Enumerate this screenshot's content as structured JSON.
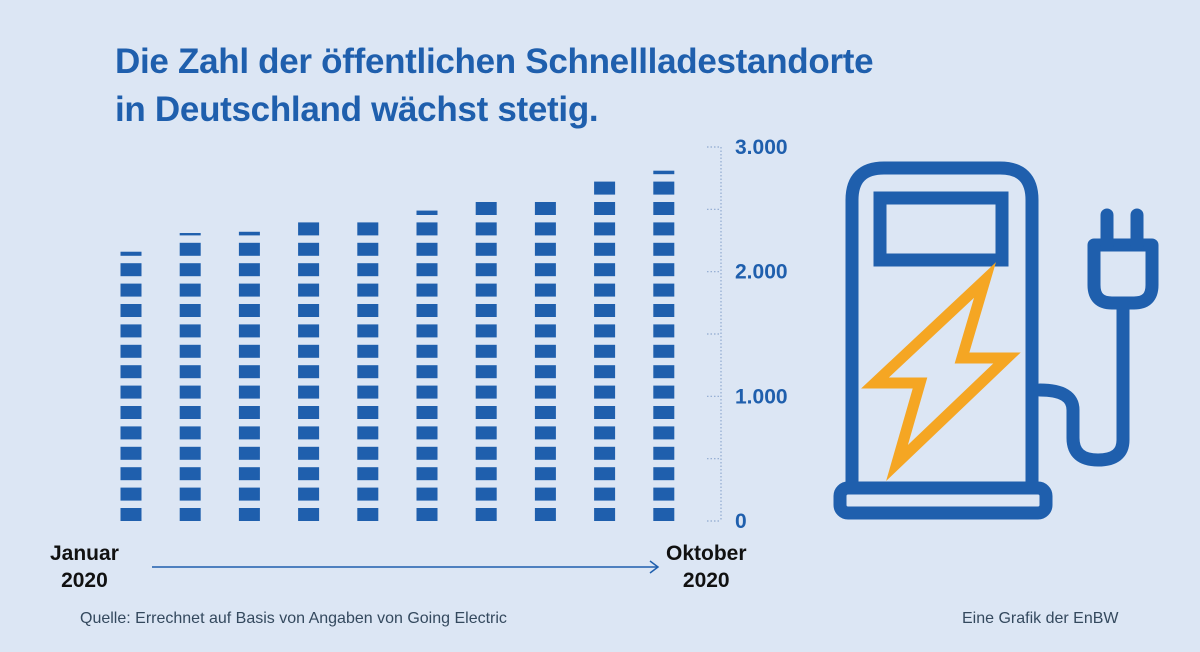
{
  "title_line1": "Die Zahl der öffentlichen Schnellladestandorte",
  "title_line2": "in Deutschland wächst stetig.",
  "source": "Quelle: Errechnet auf Basis von Angaben von Going Electric",
  "credit": "Eine Grafik der EnBW",
  "colors": {
    "background": "#dce6f4",
    "bars": "#1f5fad",
    "bolt": "#f5a623"
  },
  "icon": "ev-charging-station-icon",
  "chart_data": {
    "type": "bar",
    "style": "stacked-segment columns",
    "x_start_label": {
      "line1": "Januar",
      "line2": "2020"
    },
    "x_end_label": {
      "line1": "Oktober",
      "line2": "2020"
    },
    "values": [
      2160,
      2310,
      2320,
      2410,
      2450,
      2490,
      2590,
      2610,
      2760,
      2810
    ],
    "yticks": [
      "0",
      "1.000",
      "2.000",
      "3.000"
    ],
    "ylim": [
      0,
      3000
    ],
    "axis_position": "right",
    "grid": false
  }
}
